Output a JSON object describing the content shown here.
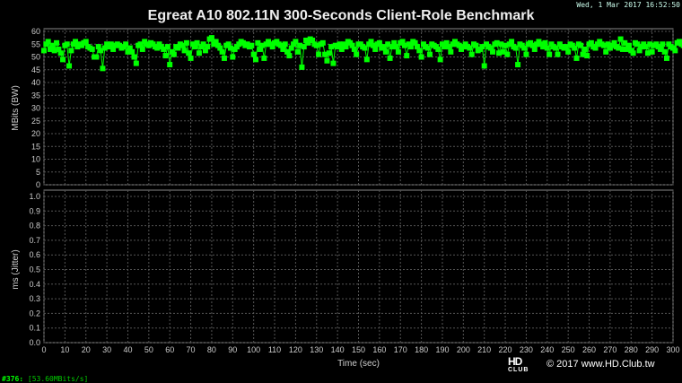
{
  "timestamp": "Wed, 1 Mar 2017 16:52:50",
  "status": {
    "index": "#376:",
    "value": "[53.60MBits/s]"
  },
  "watermark": {
    "logo": "HD CLUB",
    "copyright": "© 2017 www.HD.Club.tw"
  },
  "colors": {
    "series": "#00ff00",
    "background": "#000000",
    "grid": "#555555"
  },
  "chart_data": [
    {
      "type": "line",
      "title": "Egreat A10 802.11N 300-Seconds Client-Role Benchmark",
      "ylabel": "MBits (BW)",
      "xlabel": "",
      "xlim": [
        0,
        300
      ],
      "ylim": [
        0,
        60
      ],
      "yticks": [
        0,
        5,
        10,
        15,
        20,
        25,
        30,
        35,
        40,
        45,
        50,
        55,
        60
      ],
      "grid": true,
      "markers": "square",
      "y": [
        52.5,
        55,
        56,
        53,
        54.5,
        52.5,
        55.5,
        53,
        51.5,
        49,
        54.5,
        55,
        46.5,
        52.5,
        55,
        56,
        54,
        55,
        54.5,
        55.5,
        56,
        54,
        53.5,
        53,
        50,
        50,
        54,
        52.5,
        45.5,
        53.5,
        55,
        54,
        55,
        53,
        54.5,
        55,
        54.5,
        53.5,
        54,
        55,
        52,
        53.5,
        52,
        50,
        47.5,
        54.5,
        55,
        53,
        56,
        55,
        54.5,
        55.5,
        55,
        54,
        53.5,
        55,
        54,
        53,
        50.5,
        54,
        47,
        52,
        51,
        54,
        53.5,
        55,
        54.5,
        52.5,
        55.5,
        51.5,
        49.5,
        55,
        54,
        55.5,
        51.5,
        54,
        55,
        52.5,
        54,
        57,
        57.5,
        55,
        56,
        54.5,
        53.5,
        52,
        49.5,
        54.5,
        55,
        53.5,
        50,
        53,
        54,
        55,
        56,
        55.5,
        54.5,
        55,
        54,
        54.5,
        51,
        49,
        55.5,
        53,
        54.5,
        49.5,
        55,
        56,
        55,
        54,
        55.5,
        56,
        55,
        54.5,
        53,
        55,
        52,
        50.5,
        53.5,
        55,
        56,
        52,
        54.5,
        46,
        54,
        56.5,
        55.5,
        57,
        56.5,
        55,
        54.5,
        51,
        55,
        55.5,
        51,
        48.5,
        51.5,
        54,
        47.5,
        54.5,
        54,
        55,
        53,
        55,
        54,
        56,
        55.5,
        54.5,
        53,
        51,
        55,
        55,
        54,
        53.5,
        49,
        55,
        56,
        54.5,
        53,
        55,
        55.5,
        53.5,
        54,
        52,
        55,
        49.5,
        54,
        55.5,
        54,
        52,
        55.5,
        56,
        54.5,
        50.5,
        55,
        54,
        56,
        55.5,
        54,
        52.5,
        50,
        55,
        54,
        53.5,
        51,
        55,
        54.5,
        54,
        53,
        49,
        55,
        54,
        55.5,
        54,
        52,
        55,
        56,
        55,
        54.5,
        53,
        54,
        55,
        54,
        53.5,
        51,
        55,
        54.5,
        52.5,
        53,
        54,
        46.5,
        55,
        54,
        53.5,
        52,
        55,
        55.5,
        51.5,
        55,
        52,
        54.5,
        51,
        55,
        56,
        54,
        53.5,
        47,
        55,
        54.5,
        53.5,
        51,
        55,
        55.5,
        54.5,
        53,
        55,
        56,
        55,
        54,
        55.5,
        53.5,
        51,
        55,
        54,
        53.5,
        51,
        55,
        54,
        53.5,
        54,
        52,
        55,
        54.5,
        53.5,
        49.5,
        55,
        54.5,
        51,
        53,
        50.5,
        55,
        55.5,
        54,
        53.5,
        55,
        56,
        55,
        54.5,
        52,
        55,
        53.5,
        54.5,
        55.5,
        54,
        53.5,
        57,
        53,
        55.5,
        53,
        54.5,
        52.5,
        51.5,
        55.5,
        55,
        52.5,
        54,
        55,
        54,
        51.5,
        55,
        52,
        54.5,
        55,
        54,
        53,
        55,
        52,
        49.5,
        55,
        54,
        53.5,
        52.5,
        55.5,
        56,
        55,
        54.5,
        53.5,
        56,
        55,
        52,
        49.5,
        55,
        53,
        55.5,
        55,
        52,
        53.6
      ],
      "x_start": 0,
      "x_step": 1
    },
    {
      "type": "line",
      "title": "",
      "ylabel": "ms (Jitter)",
      "xlabel": "Time (sec)",
      "xlim": [
        0,
        300
      ],
      "ylim": [
        0,
        1.0
      ],
      "yticks": [
        0.0,
        0.1,
        0.2,
        0.3,
        0.4,
        0.5,
        0.6,
        0.7,
        0.8,
        0.9,
        1.0
      ],
      "xticks": [
        0,
        10,
        20,
        30,
        40,
        50,
        60,
        70,
        80,
        90,
        100,
        110,
        120,
        130,
        140,
        150,
        160,
        170,
        180,
        190,
        200,
        210,
        220,
        230,
        240,
        250,
        260,
        270,
        280,
        290,
        300
      ],
      "grid": true,
      "y": []
    }
  ]
}
